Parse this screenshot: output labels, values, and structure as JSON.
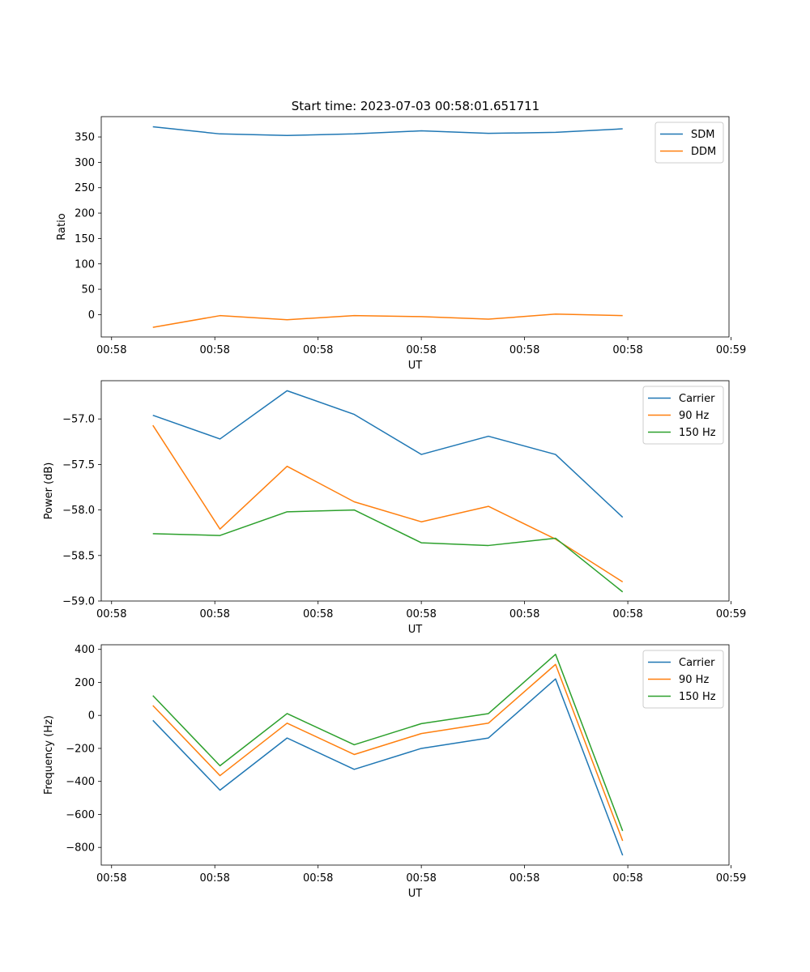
{
  "figure_title": "Start time: 2023-07-03 00:58:01.651711",
  "colors": {
    "blue": "#1f77b4",
    "orange": "#ff7f0e",
    "green": "#2ca02c",
    "axis": "#000000",
    "legend_border": "#cccccc"
  },
  "chart_data": [
    {
      "type": "line",
      "title": "Start time: 2023-07-03 00:58:01.651711",
      "xlabel": "UT",
      "ylabel": "Ratio",
      "x": [
        0.5,
        1.15,
        1.8,
        2.45,
        3.1,
        3.75,
        4.4,
        5.05
      ],
      "xlim": [
        0,
        6.08
      ],
      "ylim": [
        -44,
        390
      ],
      "xticks": [
        0.1,
        1.1,
        2.1,
        3.1,
        4.1,
        5.1,
        6.1
      ],
      "xtick_labels": [
        "00:58",
        "00:58",
        "00:58",
        "00:58",
        "00:58",
        "00:58",
        "00:59"
      ],
      "yticks": [
        0,
        50,
        100,
        150,
        200,
        250,
        300,
        350
      ],
      "ytick_labels": [
        "0",
        "50",
        "100",
        "150",
        "200",
        "250",
        "300",
        "350"
      ],
      "legend_position": "top-right",
      "grid": false,
      "series": [
        {
          "name": "SDM",
          "color": "#1f77b4",
          "values": [
            370,
            356,
            353,
            356,
            362,
            357,
            359,
            366
          ]
        },
        {
          "name": "DDM",
          "color": "#ff7f0e",
          "values": [
            -25,
            -2,
            -10,
            -2,
            -4,
            -9,
            1,
            -2
          ]
        }
      ]
    },
    {
      "type": "line",
      "title": "",
      "xlabel": "UT",
      "ylabel": "Power (dB)",
      "x": [
        0.5,
        1.15,
        1.8,
        2.45,
        3.1,
        3.75,
        4.4,
        5.05
      ],
      "xlim": [
        0,
        6.08
      ],
      "ylim": [
        -59.0,
        -56.58
      ],
      "xticks": [
        0.1,
        1.1,
        2.1,
        3.1,
        4.1,
        5.1,
        6.1
      ],
      "xtick_labels": [
        "00:58",
        "00:58",
        "00:58",
        "00:58",
        "00:58",
        "00:58",
        "00:59"
      ],
      "yticks": [
        -59.0,
        -58.5,
        -58.0,
        -57.5,
        -57.0
      ],
      "ytick_labels": [
        "−59.0",
        "−58.5",
        "−58.0",
        "−57.5",
        "−57.0"
      ],
      "legend_position": "top-right",
      "grid": false,
      "series": [
        {
          "name": "Carrier",
          "color": "#1f77b4",
          "values": [
            -56.96,
            -57.22,
            -56.69,
            -56.95,
            -57.39,
            -57.19,
            -57.39,
            -58.08
          ]
        },
        {
          "name": "90 Hz",
          "color": "#ff7f0e",
          "values": [
            -57.07,
            -58.21,
            -57.52,
            -57.91,
            -58.13,
            -57.96,
            -58.32,
            -58.79
          ]
        },
        {
          "name": "150 Hz",
          "color": "#2ca02c",
          "values": [
            -58.26,
            -58.28,
            -58.02,
            -58.0,
            -58.36,
            -58.39,
            -58.31,
            -58.9
          ]
        }
      ]
    },
    {
      "type": "line",
      "title": "",
      "xlabel": "UT",
      "ylabel": "Frequency (Hz)",
      "x": [
        0.5,
        1.15,
        1.8,
        2.45,
        3.1,
        3.75,
        4.4,
        5.05
      ],
      "xlim": [
        0,
        6.08
      ],
      "ylim": [
        -907,
        428
      ],
      "xticks": [
        0.1,
        1.1,
        2.1,
        3.1,
        4.1,
        5.1,
        6.1
      ],
      "xtick_labels": [
        "00:58",
        "00:58",
        "00:58",
        "00:58",
        "00:58",
        "00:58",
        "00:59"
      ],
      "yticks": [
        -800,
        -600,
        -400,
        -200,
        0,
        200,
        400
      ],
      "ytick_labels": [
        "−800",
        "−600",
        "−400",
        "−200",
        "0",
        "200",
        "400"
      ],
      "legend_position": "top-right",
      "grid": false,
      "series": [
        {
          "name": "Carrier",
          "color": "#1f77b4",
          "values": [
            -30,
            -453,
            -137,
            -327,
            -200,
            -137,
            221,
            -848
          ]
        },
        {
          "name": "90 Hz",
          "color": "#ff7f0e",
          "values": [
            60,
            -365,
            -47,
            -237,
            -110,
            -47,
            309,
            -760
          ]
        },
        {
          "name": "150 Hz",
          "color": "#2ca02c",
          "values": [
            120,
            -305,
            11,
            -178,
            -50,
            11,
            370,
            -700
          ]
        }
      ]
    }
  ]
}
